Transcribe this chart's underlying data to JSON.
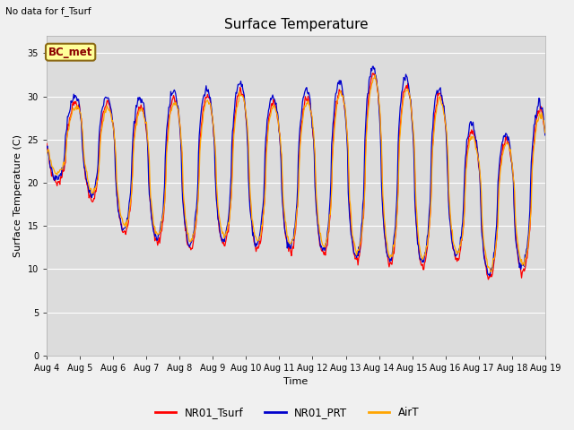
{
  "title": "Surface Temperature",
  "topleft_text": "No data for f_Tsurf",
  "xlabel": "Time",
  "ylabel": "Surface Temperature (C)",
  "ylim": [
    0,
    37
  ],
  "yticks": [
    0,
    5,
    10,
    15,
    20,
    25,
    30,
    35
  ],
  "legend_labels": [
    "NR01_Tsurf",
    "NR01_PRT",
    "AirT"
  ],
  "line_colors": [
    "#ff0000",
    "#0000cc",
    "#ffa500"
  ],
  "bc_met_label": "BC_met",
  "bc_met_facecolor": "#ffff99",
  "bc_met_edgecolor": "#8b6914",
  "bc_met_textcolor": "#8b0000",
  "background_color": "#f0f0f0",
  "plot_background": "#dcdcdc",
  "n_days": 15,
  "points_per_day": 48,
  "grid_color": "#ffffff",
  "title_fontsize": 11,
  "label_fontsize": 8,
  "tick_fontsize": 7
}
